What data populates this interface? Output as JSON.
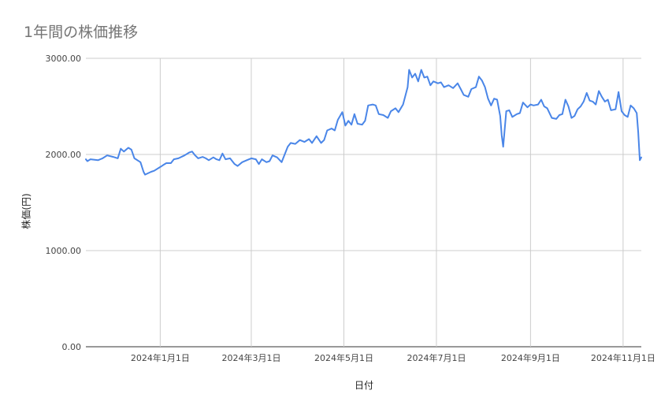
{
  "chart_data": {
    "type": "line",
    "title": "1年間の株価推移",
    "xlabel": "日付",
    "ylabel": "株価(円)",
    "ylim": [
      0,
      3000
    ],
    "yticks": [
      {
        "value": 0,
        "label": "0.00"
      },
      {
        "value": 1000,
        "label": "1000.00"
      },
      {
        "value": 2000,
        "label": "2000.00"
      },
      {
        "value": 3000,
        "label": "3000.00"
      }
    ],
    "xlim": [
      "2023-11-13",
      "2024-11-13"
    ],
    "xticks": [
      {
        "date": "2024-01-01",
        "label": "2024年1月1日"
      },
      {
        "date": "2024-03-01",
        "label": "2024年3月1日"
      },
      {
        "date": "2024-05-01",
        "label": "2024年5月1日"
      },
      {
        "date": "2024-07-01",
        "label": "2024年7月1日"
      },
      {
        "date": "2024-09-01",
        "label": "2024年9月1日"
      },
      {
        "date": "2024-11-01",
        "label": "2024年11月1日"
      }
    ],
    "grid": true,
    "line_color": "#4a86e8",
    "series": [
      {
        "values": [
          [
            "2023-11-13",
            1950
          ],
          [
            "2023-11-14",
            1930
          ],
          [
            "2023-11-16",
            1950
          ],
          [
            "2023-11-21",
            1940
          ],
          [
            "2023-11-24",
            1960
          ],
          [
            "2023-11-27",
            1990
          ],
          [
            "2023-12-01",
            1975
          ],
          [
            "2023-12-04",
            1960
          ],
          [
            "2023-12-06",
            2060
          ],
          [
            "2023-12-08",
            2030
          ],
          [
            "2023-12-11",
            2070
          ],
          [
            "2023-12-13",
            2050
          ],
          [
            "2023-12-15",
            1960
          ],
          [
            "2023-12-19",
            1920
          ],
          [
            "2023-12-21",
            1820
          ],
          [
            "2023-12-22",
            1790
          ],
          [
            "2023-12-26",
            1820
          ],
          [
            "2023-12-28",
            1830
          ],
          [
            "2024-01-01",
            1870
          ],
          [
            "2024-01-03",
            1890
          ],
          [
            "2024-01-05",
            1910
          ],
          [
            "2024-01-08",
            1910
          ],
          [
            "2024-01-10",
            1950
          ],
          [
            "2024-01-13",
            1960
          ],
          [
            "2024-01-17",
            1990
          ],
          [
            "2024-01-20",
            2020
          ],
          [
            "2024-01-22",
            2030
          ],
          [
            "2024-01-24",
            1990
          ],
          [
            "2024-01-26",
            1960
          ],
          [
            "2024-01-29",
            1975
          ],
          [
            "2024-01-31",
            1960
          ],
          [
            "2024-02-02",
            1940
          ],
          [
            "2024-02-05",
            1970
          ],
          [
            "2024-02-07",
            1950
          ],
          [
            "2024-02-09",
            1940
          ],
          [
            "2024-02-11",
            2010
          ],
          [
            "2024-02-13",
            1950
          ],
          [
            "2024-02-16",
            1960
          ],
          [
            "2024-02-19",
            1900
          ],
          [
            "2024-02-21",
            1880
          ],
          [
            "2024-02-24",
            1920
          ],
          [
            "2024-02-27",
            1940
          ],
          [
            "2024-03-01",
            1960
          ],
          [
            "2024-03-04",
            1950
          ],
          [
            "2024-03-06",
            1900
          ],
          [
            "2024-03-08",
            1950
          ],
          [
            "2024-03-11",
            1920
          ],
          [
            "2024-03-13",
            1930
          ],
          [
            "2024-03-15",
            1990
          ],
          [
            "2024-03-18",
            1970
          ],
          [
            "2024-03-21",
            1920
          ],
          [
            "2024-03-25",
            2080
          ],
          [
            "2024-03-27",
            2120
          ],
          [
            "2024-03-30",
            2110
          ],
          [
            "2024-04-02",
            2150
          ],
          [
            "2024-04-05",
            2130
          ],
          [
            "2024-04-08",
            2160
          ],
          [
            "2024-04-10",
            2120
          ],
          [
            "2024-04-13",
            2190
          ],
          [
            "2024-04-16",
            2120
          ],
          [
            "2024-04-18",
            2150
          ],
          [
            "2024-04-20",
            2250
          ],
          [
            "2024-04-23",
            2270
          ],
          [
            "2024-04-25",
            2250
          ],
          [
            "2024-04-27",
            2360
          ],
          [
            "2024-04-30",
            2440
          ],
          [
            "2024-05-02",
            2300
          ],
          [
            "2024-05-04",
            2350
          ],
          [
            "2024-05-06",
            2310
          ],
          [
            "2024-05-08",
            2420
          ],
          [
            "2024-05-10",
            2320
          ],
          [
            "2024-05-13",
            2310
          ],
          [
            "2024-05-15",
            2350
          ],
          [
            "2024-05-17",
            2510
          ],
          [
            "2024-05-20",
            2520
          ],
          [
            "2024-05-22",
            2510
          ],
          [
            "2024-05-24",
            2420
          ],
          [
            "2024-05-27",
            2410
          ],
          [
            "2024-05-30",
            2380
          ],
          [
            "2024-06-01",
            2450
          ],
          [
            "2024-06-04",
            2480
          ],
          [
            "2024-06-06",
            2440
          ],
          [
            "2024-06-09",
            2520
          ],
          [
            "2024-06-12",
            2700
          ],
          [
            "2024-06-13",
            2880
          ],
          [
            "2024-06-15",
            2800
          ],
          [
            "2024-06-17",
            2840
          ],
          [
            "2024-06-19",
            2760
          ],
          [
            "2024-06-21",
            2880
          ],
          [
            "2024-06-23",
            2800
          ],
          [
            "2024-06-25",
            2810
          ],
          [
            "2024-06-27",
            2720
          ],
          [
            "2024-06-29",
            2760
          ],
          [
            "2024-07-02",
            2740
          ],
          [
            "2024-07-04",
            2750
          ],
          [
            "2024-07-06",
            2700
          ],
          [
            "2024-07-09",
            2720
          ],
          [
            "2024-07-12",
            2690
          ],
          [
            "2024-07-15",
            2740
          ],
          [
            "2024-07-17",
            2680
          ],
          [
            "2024-07-19",
            2620
          ],
          [
            "2024-07-22",
            2600
          ],
          [
            "2024-07-24",
            2680
          ],
          [
            "2024-07-27",
            2700
          ],
          [
            "2024-07-29",
            2810
          ],
          [
            "2024-07-31",
            2770
          ],
          [
            "2024-08-02",
            2700
          ],
          [
            "2024-08-04",
            2580
          ],
          [
            "2024-08-06",
            2510
          ],
          [
            "2024-08-08",
            2580
          ],
          [
            "2024-08-10",
            2570
          ],
          [
            "2024-08-12",
            2400
          ],
          [
            "2024-08-13",
            2200
          ],
          [
            "2024-08-14",
            2080
          ],
          [
            "2024-08-16",
            2450
          ],
          [
            "2024-08-18",
            2460
          ],
          [
            "2024-08-20",
            2390
          ],
          [
            "2024-08-23",
            2420
          ],
          [
            "2024-08-25",
            2430
          ],
          [
            "2024-08-27",
            2540
          ],
          [
            "2024-08-30",
            2490
          ],
          [
            "2024-09-01",
            2520
          ],
          [
            "2024-09-03",
            2510
          ],
          [
            "2024-09-06",
            2520
          ],
          [
            "2024-09-08",
            2570
          ],
          [
            "2024-09-10",
            2500
          ],
          [
            "2024-09-12",
            2480
          ],
          [
            "2024-09-15",
            2380
          ],
          [
            "2024-09-18",
            2370
          ],
          [
            "2024-09-20",
            2410
          ],
          [
            "2024-09-22",
            2420
          ],
          [
            "2024-09-24",
            2570
          ],
          [
            "2024-09-26",
            2500
          ],
          [
            "2024-09-28",
            2380
          ],
          [
            "2024-09-30",
            2400
          ],
          [
            "2024-10-02",
            2470
          ],
          [
            "2024-10-04",
            2500
          ],
          [
            "2024-10-06",
            2550
          ],
          [
            "2024-10-08",
            2640
          ],
          [
            "2024-10-10",
            2560
          ],
          [
            "2024-10-12",
            2550
          ],
          [
            "2024-10-14",
            2520
          ],
          [
            "2024-10-16",
            2660
          ],
          [
            "2024-10-18",
            2600
          ],
          [
            "2024-10-20",
            2550
          ],
          [
            "2024-10-22",
            2570
          ],
          [
            "2024-10-24",
            2460
          ],
          [
            "2024-10-27",
            2470
          ],
          [
            "2024-10-29",
            2650
          ],
          [
            "2024-10-31",
            2450
          ],
          [
            "2024-11-02",
            2410
          ],
          [
            "2024-11-04",
            2390
          ],
          [
            "2024-11-06",
            2510
          ],
          [
            "2024-11-08",
            2480
          ],
          [
            "2024-11-10",
            2430
          ],
          [
            "2024-11-11",
            2230
          ],
          [
            "2024-11-12",
            1940
          ],
          [
            "2024-11-13",
            1970
          ]
        ]
      }
    ]
  }
}
